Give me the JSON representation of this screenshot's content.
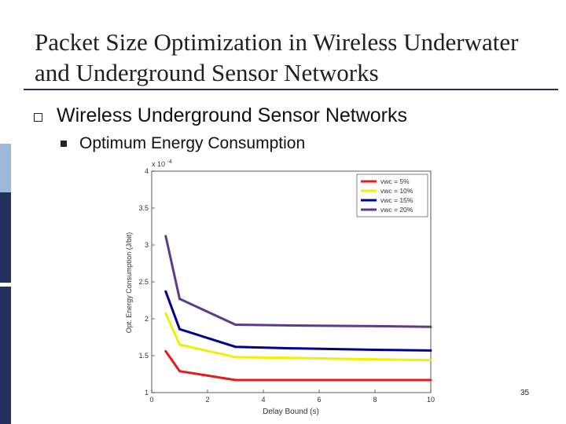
{
  "slide": {
    "title": "Packet Size Optimization in Wireless Underwater and Underground Sensor Networks",
    "bullet_level1": "Wireless Underground Sensor Networks",
    "bullet_level2": "Optimum Energy Consumption",
    "slide_number": "35",
    "colors": {
      "band_dark": "#23315e",
      "band_light": "#9eb8dc",
      "title_rule": "#23315e"
    }
  },
  "chart_data": {
    "type": "line",
    "xlabel": "Delay Bound (s)",
    "ylabel": "Opt. Energy Consumption (J/bit)",
    "y_multiplier": "x 10",
    "y_multiplier_exp": "-4",
    "xlim": [
      0,
      10
    ],
    "ylim": [
      1,
      4
    ],
    "xticks": [
      "0",
      "2",
      "4",
      "6",
      "8",
      "10"
    ],
    "yticks": [
      "1",
      "1.5",
      "2",
      "2.5",
      "3",
      "3.5",
      "4"
    ],
    "legend_position": "top-right",
    "series": [
      {
        "name": "vwc = 5%",
        "color": "#e41a1c",
        "x": [
          0.5,
          1,
          3,
          5,
          8,
          10
        ],
        "y": [
          1.56,
          1.29,
          1.17,
          1.17,
          1.17,
          1.17
        ]
      },
      {
        "name": "vwc = 10%",
        "color": "#f0f000",
        "x": [
          0.5,
          1,
          3,
          5,
          8,
          10
        ],
        "y": [
          2.07,
          1.65,
          1.48,
          1.47,
          1.45,
          1.44
        ]
      },
      {
        "name": "vwc = 15%",
        "color": "#00008b",
        "x": [
          0.5,
          1,
          3,
          5,
          8,
          10
        ],
        "y": [
          2.37,
          1.86,
          1.62,
          1.6,
          1.58,
          1.57
        ]
      },
      {
        "name": "vwc = 20%",
        "color": "#5e3a8c",
        "x": [
          0.5,
          1,
          3,
          5,
          8,
          10
        ],
        "y": [
          3.12,
          2.27,
          1.92,
          1.91,
          1.9,
          1.89
        ]
      }
    ]
  }
}
